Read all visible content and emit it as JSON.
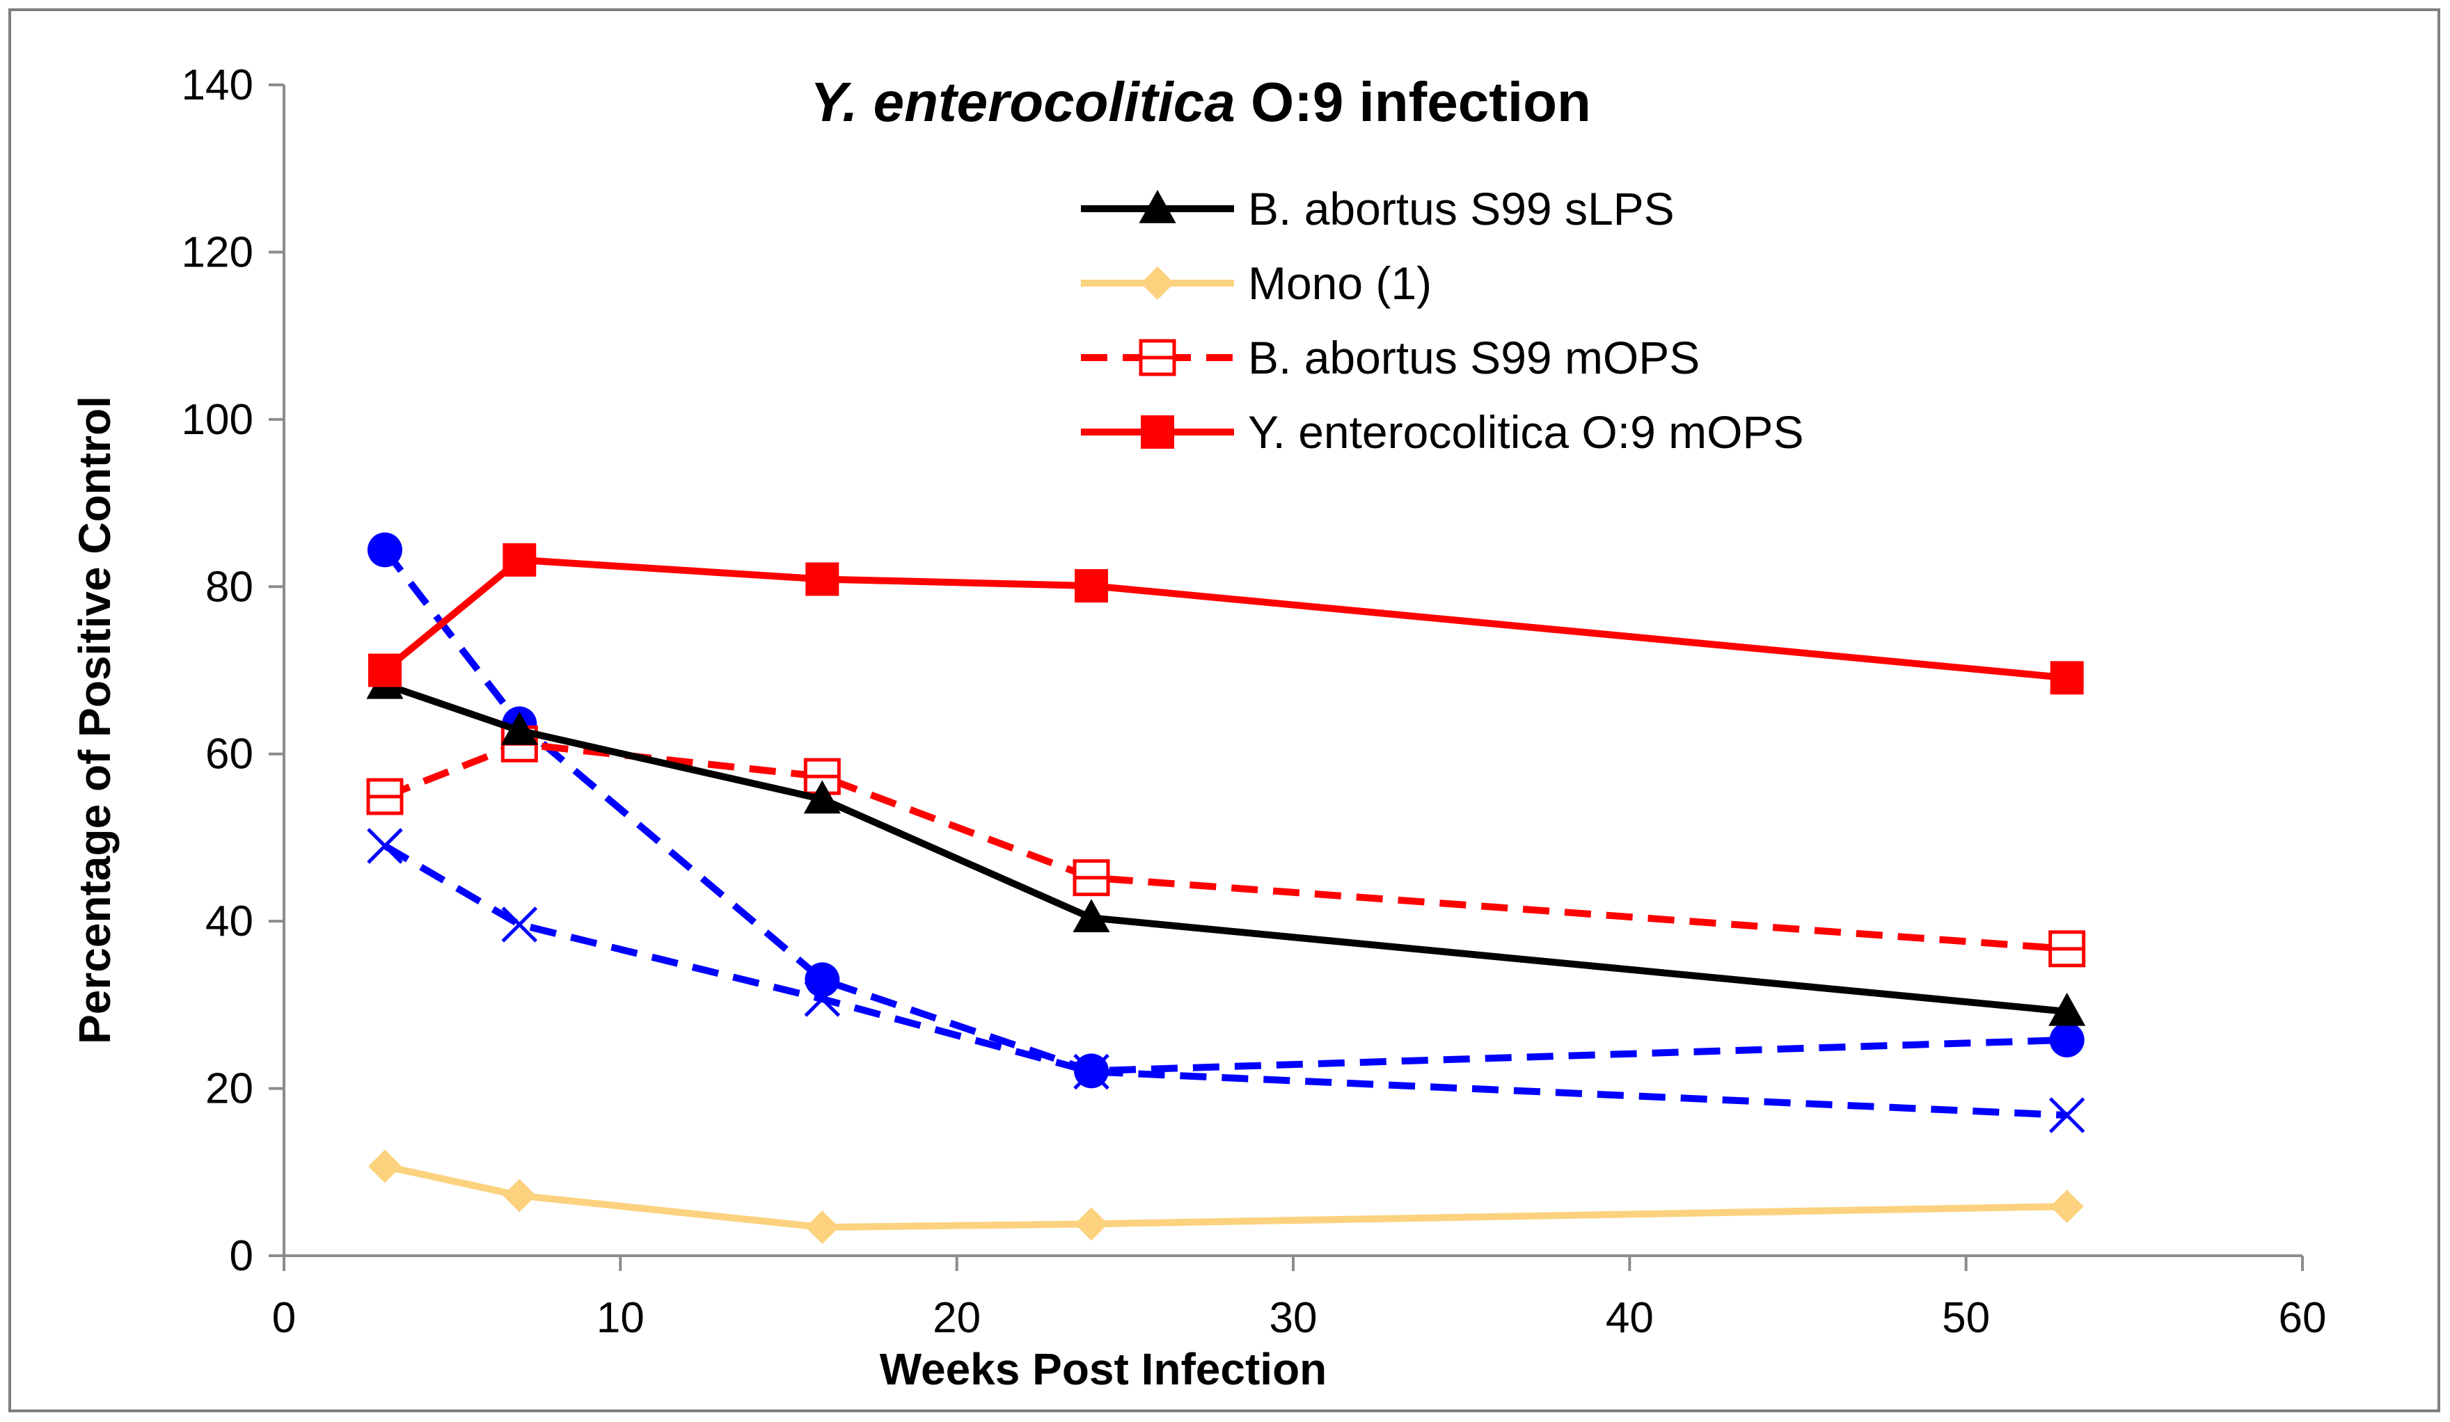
{
  "chart_data": {
    "type": "line",
    "title_italic": "Y. enterocolitica",
    "title_rest": " O:9 infection",
    "xlabel": "Weeks Post Infection",
    "ylabel": "Percentage of Positive Control",
    "xlim": [
      0,
      60
    ],
    "ylim": [
      0,
      140
    ],
    "x_ticks": [
      0,
      10,
      20,
      30,
      40,
      50,
      60
    ],
    "y_ticks": [
      0,
      20,
      40,
      60,
      80,
      100,
      120,
      140
    ],
    "x_tick_labels": [
      "0",
      "10",
      "20",
      "30",
      "40",
      "50",
      "60"
    ],
    "y_tick_labels": [
      "0",
      "20",
      "40",
      "60",
      "80",
      "100",
      "120",
      "140"
    ],
    "grid": false,
    "legend_position": "top-right",
    "x": [
      3,
      7,
      16,
      24,
      53
    ],
    "series": [
      {
        "name": "B. abortus S99 sLPS",
        "values": [
          68.3,
          62.8,
          54.6,
          40.4,
          29.2
        ],
        "color": "#000000",
        "dash": "solid",
        "marker": "triangle",
        "in_legend": true
      },
      {
        "name": "Mono (1)",
        "values": [
          10.7,
          7.2,
          3.4,
          3.8,
          5.9
        ],
        "color": "#fcd27f",
        "dash": "solid",
        "marker": "diamond",
        "in_legend": true
      },
      {
        "name": "B. abortus S99 mOPS",
        "values": [
          54.9,
          61.2,
          57.3,
          45.2,
          36.7
        ],
        "color": "#ff0000",
        "dash": "dashed",
        "marker": "open-square",
        "in_legend": true
      },
      {
        "name": "Y. enterocolitica O:9 mOPS",
        "values": [
          70.0,
          83.2,
          80.9,
          80.1,
          69.1
        ],
        "color": "#ff0000",
        "dash": "solid",
        "marker": "square",
        "in_legend": true
      },
      {
        "name": "",
        "values": [
          84.4,
          63.6,
          33.0,
          22.1,
          25.8
        ],
        "color": "#0000ff",
        "dash": "dashed",
        "marker": "circle",
        "in_legend": false
      },
      {
        "name": "",
        "values": [
          49.0,
          39.6,
          30.7,
          22.0,
          16.8
        ],
        "color": "#0000ff",
        "dash": "dashed",
        "marker": "x",
        "in_legend": false
      }
    ]
  }
}
